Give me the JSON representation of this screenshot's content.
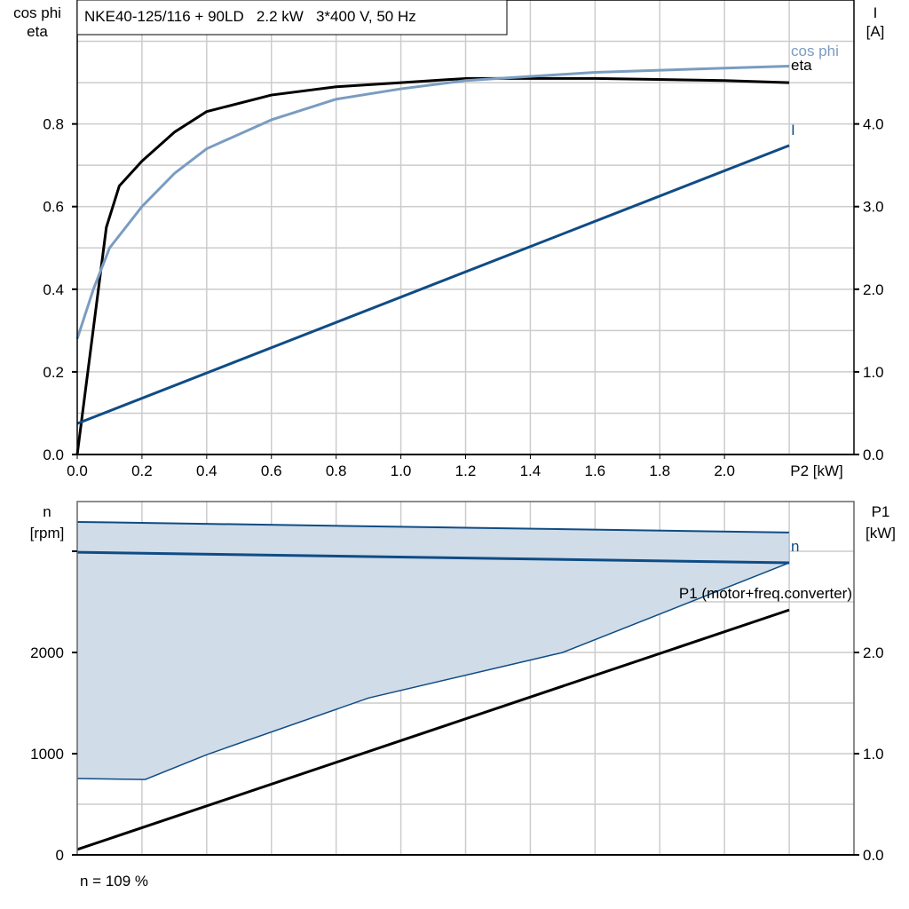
{
  "colors": {
    "eta": "#000000",
    "cos_phi": "#7a9cc0",
    "current": "#0f4c85",
    "speed": "#0f4c85",
    "range_fill": "#d0dce8",
    "p1": "#000000",
    "grid": "#cccccc"
  },
  "chart_data": [
    {
      "type": "line",
      "title": "NKE40-125/116 + 90LD   2.2 kW   3*400 V, 50 Hz",
      "xlabel": "P2 [kW]",
      "ylabel_left": [
        "cos phi",
        "eta"
      ],
      "ylabel_right": [
        "I",
        "[A]"
      ],
      "xlim": [
        0,
        2.4
      ],
      "ylim_left": [
        0,
        1.1
      ],
      "ylim_right": [
        0,
        5.5
      ],
      "x_ticks": [
        "0.0",
        "0.2",
        "0.4",
        "0.6",
        "0.8",
        "1.0",
        "1.2",
        "1.4",
        "1.6",
        "1.8",
        "2.0"
      ],
      "y_left_ticks": [
        "0.0",
        "0.2",
        "0.4",
        "0.6",
        "0.8"
      ],
      "y_right_ticks": [
        "0.0",
        "1.0",
        "2.0",
        "3.0",
        "4.0"
      ],
      "grid": true,
      "series": [
        {
          "name": "eta",
          "axis": "left",
          "x": [
            0,
            0.09,
            0.13,
            0.2,
            0.3,
            0.4,
            0.6,
            0.8,
            1.0,
            1.2,
            1.6,
            2.0,
            2.2
          ],
          "y": [
            0,
            0.55,
            0.65,
            0.71,
            0.78,
            0.83,
            0.87,
            0.89,
            0.9,
            0.91,
            0.91,
            0.905,
            0.9
          ]
        },
        {
          "name": "cos phi",
          "axis": "left",
          "x": [
            0,
            0.05,
            0.1,
            0.2,
            0.3,
            0.4,
            0.6,
            0.8,
            1.0,
            1.2,
            1.6,
            2.0,
            2.2
          ],
          "y": [
            0.28,
            0.4,
            0.5,
            0.6,
            0.68,
            0.74,
            0.81,
            0.86,
            0.885,
            0.905,
            0.925,
            0.935,
            0.94
          ]
        },
        {
          "name": "I",
          "axis": "right",
          "x": [
            0,
            2.2
          ],
          "y": [
            0.375,
            3.74
          ]
        }
      ]
    },
    {
      "type": "line",
      "ylabel_left": [
        "n",
        "[rpm]"
      ],
      "ylabel_right": [
        "P1",
        "[kW]"
      ],
      "xlim": [
        0,
        2.4
      ],
      "ylim_left": [
        0,
        3500
      ],
      "ylim_right": [
        0,
        3.5
      ],
      "y_left_ticks": [
        "0",
        "1000",
        "2000"
      ],
      "y_right_ticks": [
        "0.0",
        "1.0",
        "2.0"
      ],
      "grid": true,
      "annotation": "n = 109 %",
      "range_upper": {
        "x": [
          0,
          2.2
        ],
        "y": [
          3290,
          3185
        ]
      },
      "range_lower": {
        "x": [
          0,
          0.21,
          0.4,
          0.9,
          1.5,
          2.2
        ],
        "y": [
          754,
          745,
          990,
          1550,
          2000,
          2886
        ]
      },
      "series": [
        {
          "name": "n",
          "axis": "left",
          "x": [
            0,
            2.2
          ],
          "y": [
            2990,
            2886
          ]
        },
        {
          "name": "P1 (motor+freq.converter)",
          "axis": "right",
          "x": [
            0,
            2.2
          ],
          "y": [
            0.053,
            2.42
          ]
        }
      ]
    }
  ]
}
